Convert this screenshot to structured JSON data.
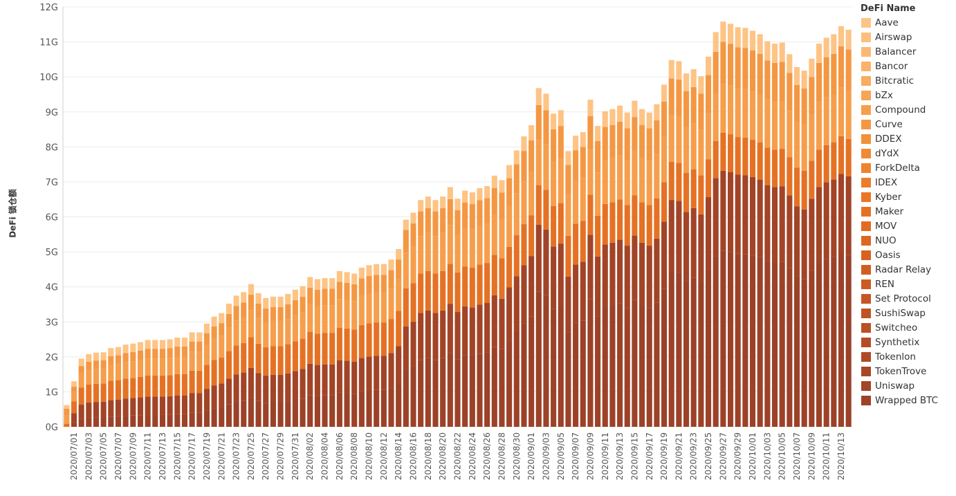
{
  "chart_data": {
    "type": "bar",
    "stacked": true,
    "ylabel": "DeFi 锁仓额",
    "ylim": [
      0,
      12
    ],
    "y_unit": "G",
    "y_ticks": [
      "0G",
      "1G",
      "2G",
      "3G",
      "4G",
      "5G",
      "6G",
      "7G",
      "8G",
      "9G",
      "10G",
      "11G",
      "12G"
    ],
    "x_tick_labels": [
      "2020/07/01",
      "2020/07/03",
      "2020/07/05",
      "2020/07/07",
      "2020/07/09",
      "2020/07/11",
      "2020/07/13",
      "2020/07/15",
      "2020/07/17",
      "2020/07/19",
      "2020/07/21",
      "2020/07/23",
      "2020/07/25",
      "2020/07/27",
      "2020/07/29",
      "2020/07/31",
      "2020/08/02",
      "2020/08/04",
      "2020/08/06",
      "2020/08/08",
      "2020/08/10",
      "2020/08/12",
      "2020/08/14",
      "2020/08/16",
      "2020/08/18",
      "2020/08/20",
      "2020/08/22",
      "2020/08/24",
      "2020/08/26",
      "2020/08/28",
      "2020/08/30",
      "2020/09/01",
      "2020/09/03",
      "2020/09/05",
      "2020/09/07",
      "2020/09/09",
      "2020/09/11",
      "2020/09/13",
      "2020/09/15",
      "2020/09/17",
      "2020/09/19",
      "2020/09/21",
      "2020/09/23",
      "2020/09/25",
      "2020/09/27",
      "2020/09/29",
      "2020/10/01",
      "2020/10/03",
      "2020/10/05",
      "2020/10/07",
      "2020/10/09",
      "2020/10/11",
      "2020/10/13"
    ],
    "first_date": "2020/06/30",
    "totals": [
      0.62,
      1.3,
      1.95,
      2.08,
      2.12,
      2.13,
      2.25,
      2.28,
      2.35,
      2.38,
      2.42,
      2.48,
      2.48,
      2.48,
      2.5,
      2.55,
      2.55,
      2.7,
      2.7,
      2.95,
      3.15,
      3.25,
      3.52,
      3.75,
      3.85,
      4.08,
      3.82,
      3.68,
      3.72,
      3.72,
      3.8,
      3.92,
      4.02,
      4.28,
      4.22,
      4.25,
      4.25,
      4.45,
      4.42,
      4.38,
      4.55,
      4.62,
      4.65,
      4.65,
      4.78,
      5.08,
      5.92,
      6.12,
      6.48,
      6.58,
      6.48,
      6.58,
      6.85,
      6.52,
      6.75,
      6.7,
      6.82,
      6.88,
      7.18,
      7.05,
      7.48,
      7.9,
      8.3,
      8.62,
      9.68,
      9.52,
      8.95,
      9.05,
      7.88,
      8.32,
      8.42,
      9.35,
      8.6,
      9.02,
      9.08,
      9.18,
      8.98,
      9.32,
      9.08,
      8.98,
      9.22,
      9.78,
      10.48,
      10.45,
      10.1,
      10.22,
      10.02,
      10.58,
      11.28,
      11.58,
      11.52,
      11.42,
      11.4,
      11.32,
      11.22,
      11.02,
      10.95,
      10.98,
      10.65,
      10.28,
      10.18,
      10.52,
      10.95,
      11.12,
      11.22,
      11.45,
      11.35
    ],
    "series": [
      {
        "name": "Aave",
        "color": "#fdc486"
      },
      {
        "name": "Airswap",
        "color": "#fcbf7e"
      },
      {
        "name": "Balancer",
        "color": "#fbb874"
      },
      {
        "name": "Bancor",
        "color": "#fab26a"
      },
      {
        "name": "Bitcratic",
        "color": "#f9ab60"
      },
      {
        "name": "bZx",
        "color": "#f8a555"
      },
      {
        "name": "Compound",
        "color": "#f69e4b"
      },
      {
        "name": "Curve",
        "color": "#f49743"
      },
      {
        "name": "DDEX",
        "color": "#f2903b"
      },
      {
        "name": "dYdX",
        "color": "#f08a34"
      },
      {
        "name": "ForkDelta",
        "color": "#ee832f"
      },
      {
        "name": "IDEX",
        "color": "#ec7d2a"
      },
      {
        "name": "Kyber",
        "color": "#e97726"
      },
      {
        "name": "Maker",
        "color": "#e57224"
      },
      {
        "name": "MOV",
        "color": "#e16c22"
      },
      {
        "name": "NUO",
        "color": "#dc6721"
      },
      {
        "name": "Oasis",
        "color": "#d76221"
      },
      {
        "name": "Radar Relay",
        "color": "#d15e21"
      },
      {
        "name": "REN",
        "color": "#cc5a22"
      },
      {
        "name": "Set Protocol",
        "color": "#c65623"
      },
      {
        "name": "SushiSwap",
        "color": "#c05324"
      },
      {
        "name": "Switcheo",
        "color": "#ba5025"
      },
      {
        "name": "Synthetix",
        "color": "#b44d26"
      },
      {
        "name": "Tokenlon",
        "color": "#ae4a26"
      },
      {
        "name": "TokenTrove",
        "color": "#a84727"
      },
      {
        "name": "Uniswap",
        "color": "#a24427"
      },
      {
        "name": "Wrapped BTC",
        "color": "#9c4228"
      }
    ]
  },
  "legend": {
    "title": "DeFi Name"
  }
}
